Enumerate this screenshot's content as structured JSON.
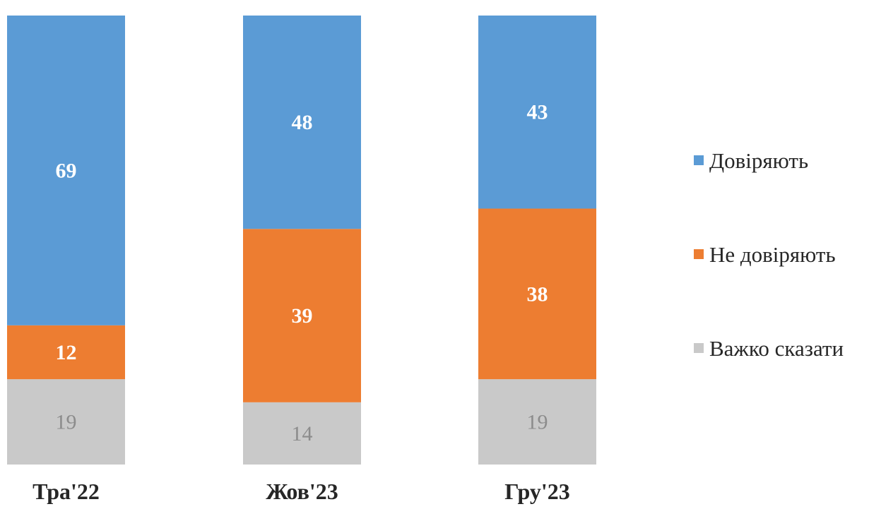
{
  "chart_data": {
    "type": "bar",
    "stacked": true,
    "normalized": true,
    "categories": [
      "Тра'22",
      "Жов'23",
      "Гру'23"
    ],
    "series": [
      {
        "name": "Довіряють",
        "values": [
          69,
          48,
          43
        ],
        "color": "#5b9bd5",
        "label_color": "#ffffff",
        "label_bold": true
      },
      {
        "name": "Не довіряють",
        "values": [
          12,
          39,
          38
        ],
        "color": "#ed7d31",
        "label_color": "#ffffff",
        "label_bold": true
      },
      {
        "name": "Важко сказати",
        "values": [
          19,
          14,
          19
        ],
        "color": "#c9c9c9",
        "label_color": "#8c8c8c",
        "label_bold": false
      }
    ],
    "legend": "right",
    "grid": false,
    "title": "",
    "xlabel": "",
    "ylabel": ""
  }
}
